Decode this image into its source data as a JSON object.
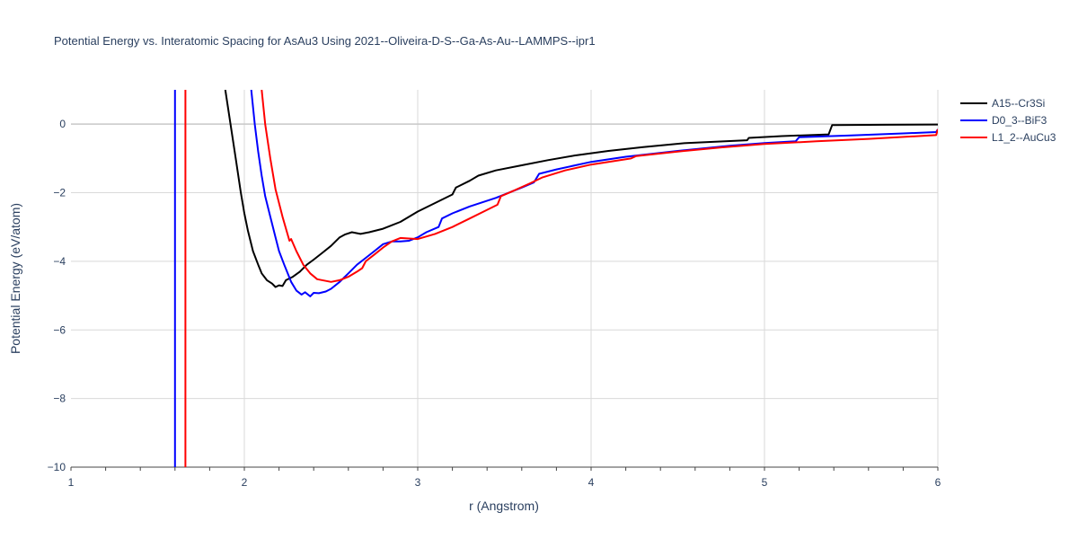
{
  "chart_data": {
    "type": "line",
    "title": "Potential Energy vs. Interatomic Spacing for AsAu3 Using 2021--Oliveira-D-S--Ga-As-Au--LAMMPS--ipr1",
    "xlabel": "r (Angstrom)",
    "ylabel": "Potential Energy (eV/atom)",
    "xlim": [
      1,
      6
    ],
    "ylim": [
      -10,
      1
    ],
    "xticks": [
      1,
      2,
      3,
      4,
      5,
      6
    ],
    "yticks": [
      0,
      -2,
      -4,
      -6,
      -8,
      -10
    ],
    "xtick_labels": [
      "1",
      "2",
      "3",
      "4",
      "5",
      "6"
    ],
    "ytick_labels": [
      "0",
      "−2",
      "−4",
      "−6",
      "−8",
      "−10"
    ],
    "grid": true,
    "legend_position": "top-right",
    "series": [
      {
        "name": "A15--Cr3Si",
        "color": "#000000",
        "points": [
          [
            1.89,
            1.0
          ],
          [
            1.92,
            0.0
          ],
          [
            1.95,
            -1.0
          ],
          [
            1.98,
            -2.0
          ],
          [
            2.0,
            -2.6
          ],
          [
            2.02,
            -3.1
          ],
          [
            2.05,
            -3.7
          ],
          [
            2.08,
            -4.1
          ],
          [
            2.1,
            -4.35
          ],
          [
            2.13,
            -4.55
          ],
          [
            2.16,
            -4.65
          ],
          [
            2.18,
            -4.75
          ],
          [
            2.2,
            -4.7
          ],
          [
            2.22,
            -4.72
          ],
          [
            2.24,
            -4.55
          ],
          [
            2.28,
            -4.45
          ],
          [
            2.32,
            -4.3
          ],
          [
            2.36,
            -4.1
          ],
          [
            2.4,
            -3.95
          ],
          [
            2.45,
            -3.75
          ],
          [
            2.5,
            -3.55
          ],
          [
            2.55,
            -3.3
          ],
          [
            2.58,
            -3.22
          ],
          [
            2.62,
            -3.15
          ],
          [
            2.67,
            -3.2
          ],
          [
            2.72,
            -3.15
          ],
          [
            2.8,
            -3.05
          ],
          [
            2.9,
            -2.85
          ],
          [
            3.0,
            -2.55
          ],
          [
            3.1,
            -2.3
          ],
          [
            3.2,
            -2.05
          ],
          [
            3.22,
            -1.85
          ],
          [
            3.3,
            -1.65
          ],
          [
            3.35,
            -1.5
          ],
          [
            3.45,
            -1.35
          ],
          [
            3.6,
            -1.2
          ],
          [
            3.75,
            -1.05
          ],
          [
            3.9,
            -0.92
          ],
          [
            4.1,
            -0.78
          ],
          [
            4.3,
            -0.67
          ],
          [
            4.55,
            -0.55
          ],
          [
            4.9,
            -0.47
          ],
          [
            4.91,
            -0.4
          ],
          [
            5.1,
            -0.35
          ],
          [
            5.37,
            -0.3
          ],
          [
            5.39,
            -0.03
          ],
          [
            5.7,
            -0.02
          ],
          [
            6.0,
            -0.01
          ]
        ]
      },
      {
        "name": "D0_3--BiF3",
        "color": "#0000ff",
        "points": [
          [
            1.6,
            1.0
          ],
          [
            1.6,
            -10.0
          ],
          null,
          [
            2.04,
            1.0
          ],
          [
            2.06,
            0.0
          ],
          [
            2.08,
            -0.8
          ],
          [
            2.1,
            -1.5
          ],
          [
            2.12,
            -2.1
          ],
          [
            2.15,
            -2.7
          ],
          [
            2.18,
            -3.3
          ],
          [
            2.2,
            -3.7
          ],
          [
            2.23,
            -4.1
          ],
          [
            2.27,
            -4.6
          ],
          [
            2.3,
            -4.85
          ],
          [
            2.33,
            -4.97
          ],
          [
            2.35,
            -4.9
          ],
          [
            2.38,
            -5.02
          ],
          [
            2.4,
            -4.92
          ],
          [
            2.43,
            -4.93
          ],
          [
            2.47,
            -4.88
          ],
          [
            2.5,
            -4.8
          ],
          [
            2.55,
            -4.6
          ],
          [
            2.6,
            -4.35
          ],
          [
            2.65,
            -4.1
          ],
          [
            2.7,
            -3.9
          ],
          [
            2.75,
            -3.7
          ],
          [
            2.8,
            -3.5
          ],
          [
            2.85,
            -3.42
          ],
          [
            2.9,
            -3.42
          ],
          [
            2.95,
            -3.4
          ],
          [
            3.0,
            -3.3
          ],
          [
            3.05,
            -3.15
          ],
          [
            3.12,
            -3.0
          ],
          [
            3.14,
            -2.75
          ],
          [
            3.2,
            -2.6
          ],
          [
            3.3,
            -2.4
          ],
          [
            3.45,
            -2.15
          ],
          [
            3.6,
            -1.85
          ],
          [
            3.67,
            -1.7
          ],
          [
            3.7,
            -1.45
          ],
          [
            3.8,
            -1.32
          ],
          [
            4.0,
            -1.1
          ],
          [
            4.2,
            -0.95
          ],
          [
            4.5,
            -0.78
          ],
          [
            4.8,
            -0.63
          ],
          [
            5.0,
            -0.55
          ],
          [
            5.18,
            -0.5
          ],
          [
            5.2,
            -0.38
          ],
          [
            5.5,
            -0.33
          ],
          [
            5.8,
            -0.27
          ],
          [
            5.99,
            -0.23
          ],
          [
            6.0,
            -0.15
          ]
        ]
      },
      {
        "name": "L1_2--AuCu3",
        "color": "#ff0000",
        "points": [
          [
            1.66,
            1.0
          ],
          [
            1.66,
            -10.0
          ],
          null,
          [
            2.1,
            1.0
          ],
          [
            2.12,
            0.0
          ],
          [
            2.15,
            -1.0
          ],
          [
            2.18,
            -1.9
          ],
          [
            2.22,
            -2.7
          ],
          [
            2.26,
            -3.4
          ],
          [
            2.27,
            -3.35
          ],
          [
            2.3,
            -3.7
          ],
          [
            2.34,
            -4.1
          ],
          [
            2.38,
            -4.35
          ],
          [
            2.42,
            -4.52
          ],
          [
            2.5,
            -4.6
          ],
          [
            2.55,
            -4.55
          ],
          [
            2.6,
            -4.45
          ],
          [
            2.65,
            -4.3
          ],
          [
            2.68,
            -4.2
          ],
          [
            2.7,
            -4.0
          ],
          [
            2.75,
            -3.8
          ],
          [
            2.8,
            -3.6
          ],
          [
            2.85,
            -3.42
          ],
          [
            2.9,
            -3.32
          ],
          [
            3.0,
            -3.35
          ],
          [
            3.1,
            -3.2
          ],
          [
            3.2,
            -3.0
          ],
          [
            3.3,
            -2.75
          ],
          [
            3.4,
            -2.5
          ],
          [
            3.46,
            -2.35
          ],
          [
            3.48,
            -2.1
          ],
          [
            3.55,
            -1.95
          ],
          [
            3.65,
            -1.72
          ],
          [
            3.72,
            -1.55
          ],
          [
            3.85,
            -1.35
          ],
          [
            4.0,
            -1.18
          ],
          [
            4.23,
            -1.0
          ],
          [
            4.26,
            -0.93
          ],
          [
            4.5,
            -0.8
          ],
          [
            4.75,
            -0.68
          ],
          [
            5.0,
            -0.58
          ],
          [
            5.3,
            -0.5
          ],
          [
            5.6,
            -0.43
          ],
          [
            5.99,
            -0.32
          ],
          [
            6.0,
            -0.15
          ]
        ]
      }
    ]
  }
}
